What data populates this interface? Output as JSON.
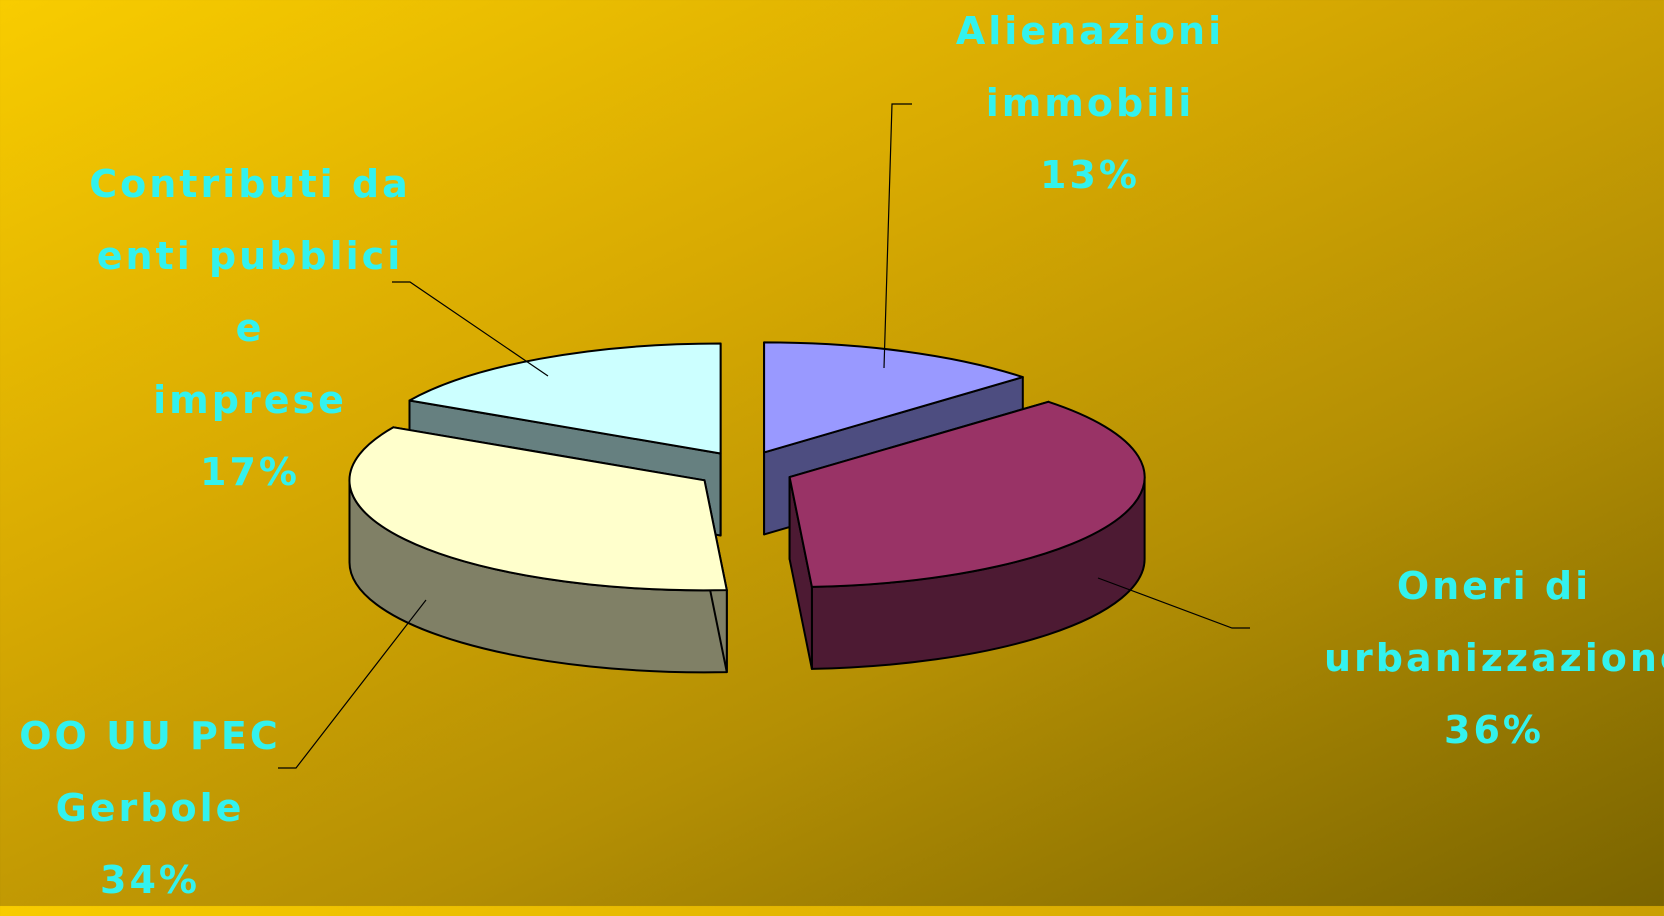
{
  "chart_data": {
    "type": "pie",
    "style": "3d-exploded",
    "slices": [
      {
        "name": "Alienazioni immobili",
        "lines": [
          "Alienazioni",
          "immobili"
        ],
        "value": 13,
        "pct": "13%",
        "top_color": "#9999ff",
        "side_color": "#4d4d80"
      },
      {
        "name": "Oneri di urbanizzazione",
        "lines": [
          "Oneri di",
          "urbanizzazione"
        ],
        "value": 36,
        "pct": "36%",
        "top_color": "#993366",
        "side_color": "#4d1a33"
      },
      {
        "name": "OO UU PEC Gerbole",
        "lines": [
          "OO UU PEC",
          "Gerbole"
        ],
        "value": 34,
        "pct": "34%",
        "top_color": "#ffffcc",
        "side_color": "#808066"
      },
      {
        "name": "Contributi da enti pubblici e imprese",
        "lines": [
          "Contributi da",
          "enti pubblici e",
          "imprese"
        ],
        "value": 17,
        "pct": "17%",
        "top_color": "#ccffff",
        "side_color": "#668080"
      }
    ],
    "label_color": "#33f2ee"
  }
}
